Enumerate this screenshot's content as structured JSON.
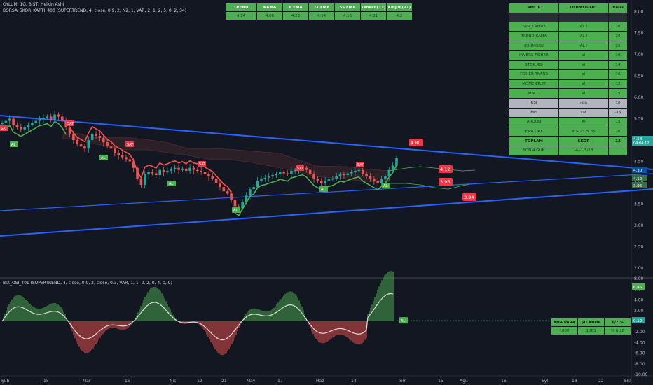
{
  "legend": {
    "symbol": "OYLUM, 1G, BIST, Heikin Ashi",
    "indicator": "BORSA_SKOR_KARTI_400 (SUPERTREND, 4, close, 0.9, 2, N2, 1, VAR, 2, 1, 2, 5, 0, 2, 34)",
    "oscillator": "BIX_OSI_401 (SUPERTREND, 4, close, 0.9, 2, close, 0.3, VAR, 1, 1, 2, 2, 0, 4, 0, 9)"
  },
  "top_table": {
    "headers": [
      "TREND",
      "KAMA",
      "8 EMA",
      "21 EMA",
      "55 EMA",
      "Tenkan(13)",
      "Kinjun(21)"
    ],
    "values": [
      "4.14",
      "4.06",
      "4.23",
      "4.14",
      "4.16",
      "4.31",
      "4.2"
    ]
  },
  "score_table": {
    "headers": [
      "AMLIK",
      "OLUMLU-TUT",
      "V400"
    ],
    "rows": [
      {
        "name": "SPR_TREND",
        "status": "AL !",
        "score": "20",
        "style": "g"
      },
      {
        "name": "TREND-KAMA",
        "status": "AL !",
        "score": "20",
        "style": "g"
      },
      {
        "name": "ICHIMOKU",
        "status": "AL !",
        "score": "20",
        "style": "g"
      },
      {
        "name": "INVERS FISHER",
        "status": "al",
        "score": "10",
        "style": "g"
      },
      {
        "name": "STOK.RSI",
        "status": "al",
        "score": "14",
        "style": "g"
      },
      {
        "name": "FISHER TRANS",
        "status": "al",
        "score": "16",
        "style": "g"
      },
      {
        "name": "MOMENTUM",
        "status": "al",
        "score": "12",
        "style": "g"
      },
      {
        "name": "MACD",
        "status": "al",
        "score": "15",
        "style": "g"
      },
      {
        "name": "RSI",
        "status": "nötr",
        "score": "10",
        "style": "gr"
      },
      {
        "name": "MFI",
        "status": "sat",
        "score": "-15",
        "style": "gr"
      },
      {
        "name": "AROON",
        "status": "Al",
        "score": "15",
        "style": "g"
      },
      {
        "name": "EMA ORT",
        "status": "8 > 21 > 55",
        "score": "20",
        "style": "g"
      },
      {
        "name": "TOPLAM",
        "status": "SKOR",
        "score": "13",
        "style": "gb"
      },
      {
        "name": "SON 4 GÜN",
        "status": "-4/-1/5/13",
        "score": "",
        "style": "g"
      }
    ]
  },
  "kz_table": {
    "headers": [
      "ANA PARA",
      "ŞU ANDA",
      "K/Z %"
    ],
    "values": [
      "1000",
      "1063",
      "% 6.28"
    ]
  },
  "price_axis": {
    "ticks": [
      "8.00",
      "7.50",
      "7.00",
      "6.50",
      "6.00",
      "5.50",
      "5.00",
      "4.50",
      "4.00",
      "3.50",
      "3.00",
      "2.50",
      "2.00"
    ],
    "current_price": "4.58",
    "countdown": "04:04:12",
    "markers": [
      "4.30",
      "4.12",
      "3.96"
    ]
  },
  "osc_axis": {
    "ticks": [
      "8.00",
      "6.00",
      "4.00",
      "2.00",
      "-2.00",
      "-4.00",
      "-6.00",
      "-8.00",
      "-10.00"
    ],
    "current": "6.45",
    "line_value": "0.12"
  },
  "time_axis": [
    "Şub",
    "15",
    "Mar",
    "15",
    "Nis",
    "12",
    "21",
    "May",
    "17",
    "Haz",
    "14",
    "Tem",
    "15",
    "Ağu",
    "16",
    "Eyl",
    "13",
    "22",
    "Eki"
  ],
  "price_labels": [
    "4.80",
    "4.12",
    "3.96",
    "3.84"
  ],
  "signal_labels": {
    "buy": "AL",
    "sell": "SAT"
  },
  "osc_signal": "AL",
  "colors": {
    "background": "#131722",
    "up": "#26a69a",
    "down": "#ef5350",
    "trend_line": "#2962ff",
    "table_green": "#4caf50",
    "label_red": "#f23645"
  }
}
